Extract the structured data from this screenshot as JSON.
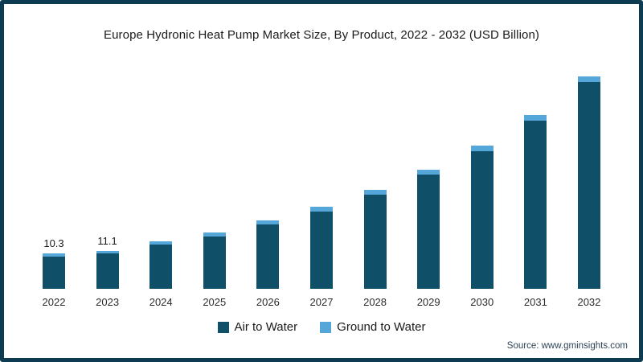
{
  "frame": {
    "border_color": "#0d3b52",
    "background_color": "#ffffff"
  },
  "chart_data": {
    "type": "bar",
    "stacked": true,
    "title": "Europe Hydronic Heat Pump Market Size, By Product, 2022 - 2032 (USD Billion)",
    "unit": "USD Billion",
    "categories": [
      "2022",
      "2023",
      "2024",
      "2025",
      "2026",
      "2027",
      "2028",
      "2029",
      "2030",
      "2031",
      "2032"
    ],
    "series": [
      {
        "name": "Air to Water",
        "color": "#0f5068",
        "values": [
          9.4,
          10.2,
          12.8,
          15.3,
          18.7,
          22.6,
          27.5,
          33.3,
          40.1,
          49.0,
          60.2
        ]
      },
      {
        "name": "Ground to Water",
        "color": "#55a7d9",
        "values": [
          0.9,
          0.9,
          1.0,
          1.1,
          1.2,
          1.3,
          1.3,
          1.4,
          1.5,
          1.6,
          1.6
        ]
      }
    ],
    "totals": [
      10.3,
      11.1,
      13.8,
      16.4,
      19.9,
      23.9,
      28.8,
      34.7,
      41.6,
      50.6,
      61.8
    ],
    "visible_value_labels": {
      "2022": "10.3",
      "2023": "11.1"
    },
    "xlabel": "",
    "ylabel": "",
    "ylim": [
      0,
      65
    ],
    "grid": false,
    "axis_lines": false,
    "legend_position": "bottom"
  },
  "source": {
    "label": "Source: www.gminsights.com"
  }
}
